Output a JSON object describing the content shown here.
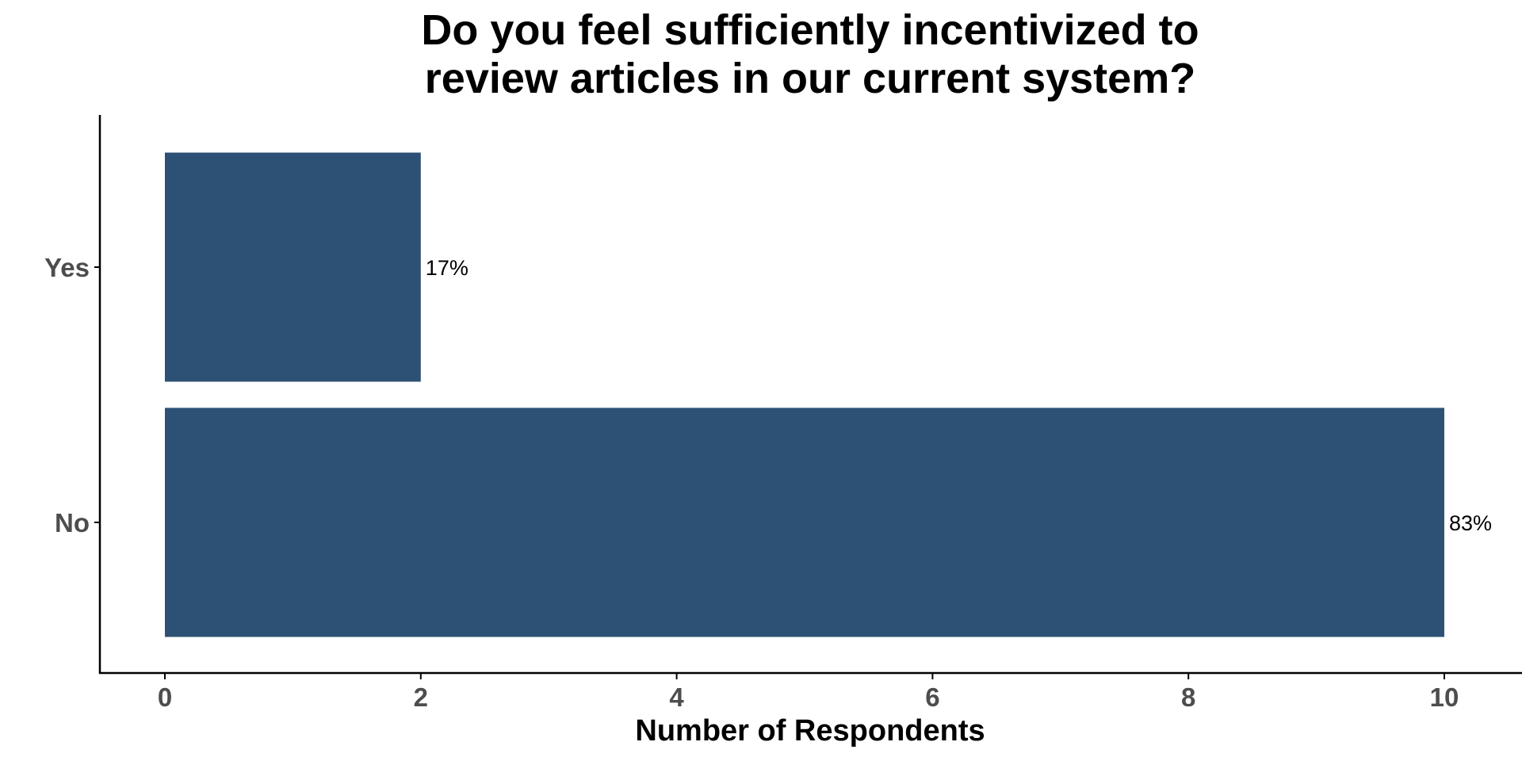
{
  "chart_data": {
    "type": "bar",
    "orientation": "horizontal",
    "title": "Do you feel sufficiently incentivized to review articles in our current system?",
    "title_lines": [
      "Do you feel sufficiently incentivized to",
      "review articles in our current system?"
    ],
    "xlabel": "Number of Respondents",
    "ylabel": "",
    "categories": [
      "Yes",
      "No"
    ],
    "values": [
      2,
      10
    ],
    "data_labels": [
      "17%",
      "83%"
    ],
    "xlim": [
      0,
      10
    ],
    "x_ticks": [
      0,
      2,
      4,
      6,
      8,
      10
    ],
    "grid": false,
    "legend": "none",
    "colors": {
      "bar": "#2c5175",
      "axis": "#000000",
      "tick_text": "#4d4d4d",
      "text": "#000000"
    }
  }
}
